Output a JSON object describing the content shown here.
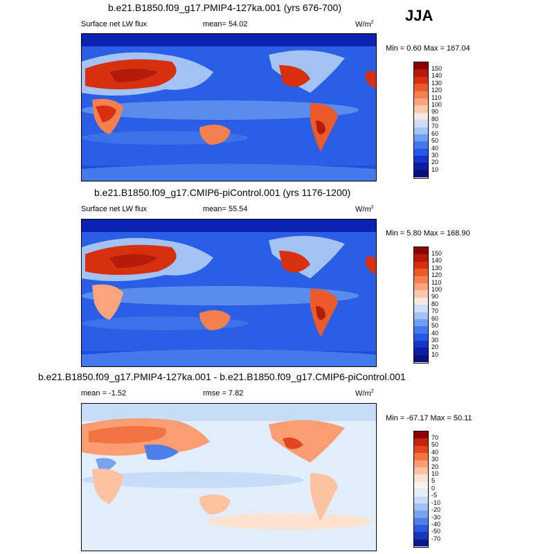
{
  "season": "JJA",
  "panels": [
    {
      "title": "b.e21.B1850.f09_g17.PMIP4-127ka.001 (yrs 676-700)",
      "left_label": "Surface net LW flux",
      "mid_label": "mean=  54.02",
      "units": "W/m",
      "units_sup": "2",
      "minmax": "Min =   0.60 Max = 167.04",
      "colorbar_labels": [
        "150",
        "140",
        "130",
        "120",
        "110",
        "100",
        "90",
        "80",
        "70",
        "60",
        "50",
        "40",
        "30",
        "20",
        "10"
      ]
    },
    {
      "title": "b.e21.B1850.f09_g17.CMIP6-piControl.001 (yrs 1176-1200)",
      "left_label": "Surface net LW flux",
      "mid_label": "mean=  55.54",
      "units": "W/m",
      "units_sup": "2",
      "minmax": "Min =   5.80 Max = 168.90",
      "colorbar_labels": [
        "150",
        "140",
        "130",
        "120",
        "110",
        "100",
        "90",
        "80",
        "70",
        "60",
        "50",
        "40",
        "30",
        "20",
        "10"
      ]
    },
    {
      "title": "b.e21.B1850.f09_g17.PMIP4-127ka.001 - b.e21.B1850.f09_g17.CMIP6-piControl.001",
      "left_label": "mean =  -1.52",
      "mid_label": "rmse =   7.82",
      "units": "W/m",
      "units_sup": "2",
      "minmax": "Min = -67.17 Max =  50.11",
      "colorbar_labels": [
        "70",
        "50",
        "40",
        "30",
        "20",
        "10",
        "5",
        "0",
        "-5",
        "-10",
        "-20",
        "-30",
        "-40",
        "-50",
        "-70"
      ]
    }
  ],
  "colors": {
    "abs_scale": [
      "#8b0000",
      "#b51b0a",
      "#d7300f",
      "#ea5a2a",
      "#f5804f",
      "#fba47d",
      "#fdc8aa",
      "#f6e8e2",
      "#cdddf7",
      "#a3c3f5",
      "#6d9ff1",
      "#4479ec",
      "#2558e4",
      "#1536c8",
      "#0c1ca4",
      "#05107a"
    ],
    "diff_scale": [
      "#8b0000",
      "#c2230d",
      "#e2461e",
      "#f37443",
      "#fb9d72",
      "#fdc3a1",
      "#fde2d0",
      "#f9f1ec",
      "#e3eefc",
      "#c7dcf7",
      "#9fc1f3",
      "#7aa3ee",
      "#4e7fe8",
      "#2b5bdd",
      "#1738b9",
      "#0a1b8c"
    ]
  }
}
